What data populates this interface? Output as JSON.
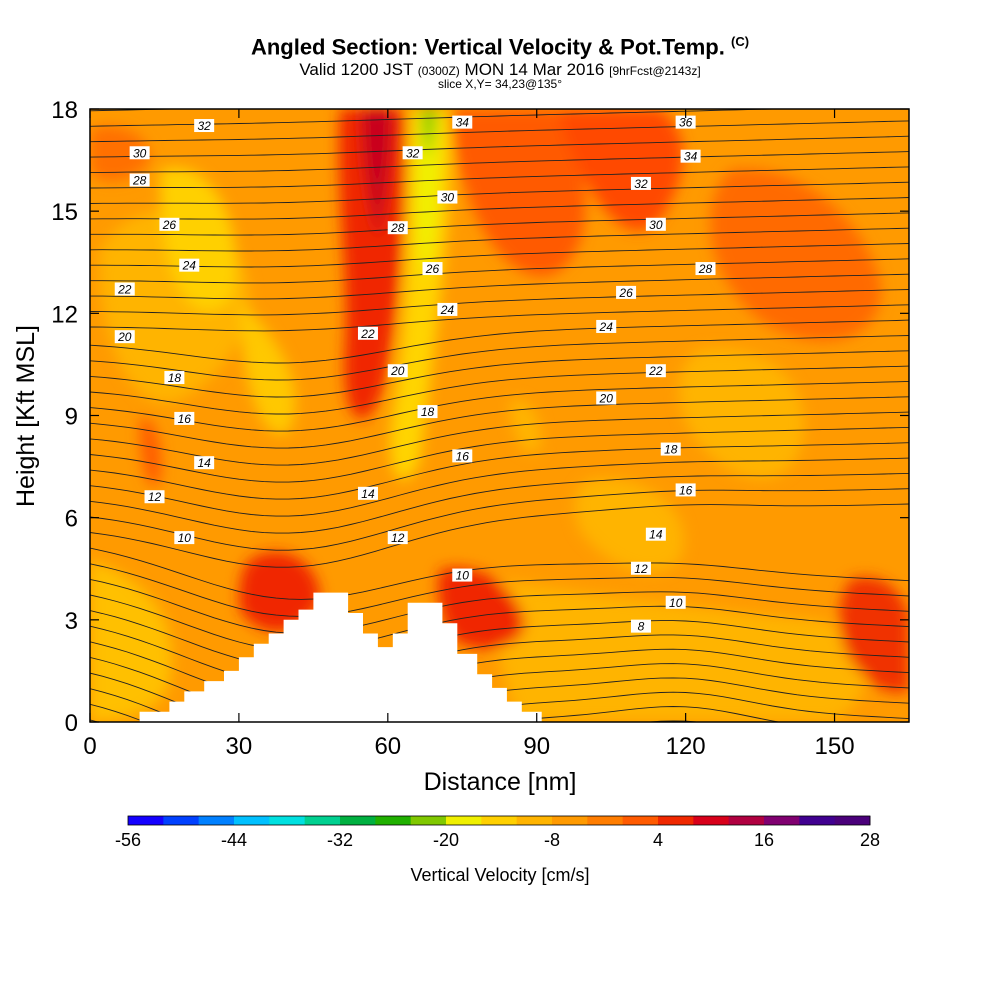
{
  "header": {
    "title": "Angled Section: Vertical Velocity & Pot.Temp.",
    "title_unit": "(C)",
    "valid_prefix": "Valid 1200 JST",
    "valid_utc": "(0300Z)",
    "valid_date": "MON 14 Mar 2016",
    "forecast": "[9hrFcst@2143z]",
    "slice": "slice X,Y= 34,23@135°"
  },
  "chart_data": {
    "type": "heatmap",
    "xlabel": "Distance [nm]",
    "ylabel": "Height [Kft MSL]",
    "xlim": [
      0,
      165
    ],
    "ylim": [
      0,
      18
    ],
    "xticks": [
      0,
      30,
      60,
      90,
      120,
      150
    ],
    "yticks": [
      0,
      3,
      6,
      9,
      12,
      15,
      18
    ],
    "colorbar": {
      "label": "Vertical Velocity [cm/s]",
      "min": -56,
      "max": 28,
      "step": 4,
      "tick_labels": [
        "-56",
        "-44",
        "-32",
        "-20",
        "-8",
        "4",
        "16",
        "28"
      ],
      "colors": [
        "#1400ff",
        "#0040ff",
        "#0080ff",
        "#00c0ff",
        "#00e0e0",
        "#00d090",
        "#00b040",
        "#20b000",
        "#80c800",
        "#f0f000",
        "#ffd000",
        "#ffb400",
        "#ff9a00",
        "#ff7d00",
        "#ff5a00",
        "#f02800",
        "#d8001a",
        "#b00040",
        "#800070",
        "#400090",
        "#4a007a"
      ]
    },
    "terrain": [
      [
        0,
        0
      ],
      [
        10,
        0
      ],
      [
        10,
        0.3
      ],
      [
        16,
        0.3
      ],
      [
        16,
        0.6
      ],
      [
        19,
        0.6
      ],
      [
        19,
        0.9
      ],
      [
        23,
        0.9
      ],
      [
        23,
        1.2
      ],
      [
        27,
        1.2
      ],
      [
        27,
        1.5
      ],
      [
        30,
        1.5
      ],
      [
        30,
        1.9
      ],
      [
        33,
        1.9
      ],
      [
        33,
        2.3
      ],
      [
        36,
        2.3
      ],
      [
        36,
        2.6
      ],
      [
        39,
        2.6
      ],
      [
        39,
        3.0
      ],
      [
        42,
        3.0
      ],
      [
        42,
        3.3
      ],
      [
        45,
        3.3
      ],
      [
        45,
        3.8
      ],
      [
        52,
        3.8
      ],
      [
        52,
        3.2
      ],
      [
        55,
        3.2
      ],
      [
        55,
        2.6
      ],
      [
        58,
        2.6
      ],
      [
        58,
        2.2
      ],
      [
        61,
        2.2
      ],
      [
        61,
        2.6
      ],
      [
        64,
        2.6
      ],
      [
        64,
        3.5
      ],
      [
        71,
        3.5
      ],
      [
        71,
        2.9
      ],
      [
        74,
        2.9
      ],
      [
        74,
        2.0
      ],
      [
        78,
        2.0
      ],
      [
        78,
        1.4
      ],
      [
        81,
        1.4
      ],
      [
        81,
        1.0
      ],
      [
        84,
        1.0
      ],
      [
        84,
        0.6
      ],
      [
        87,
        0.6
      ],
      [
        87,
        0.3
      ],
      [
        91,
        0.3
      ],
      [
        91,
        0
      ],
      [
        165,
        0
      ]
    ],
    "contour_labels": [
      {
        "text": "36",
        "x": 120,
        "y": 17.6
      },
      {
        "text": "34",
        "x": 75,
        "y": 17.6
      },
      {
        "text": "34",
        "x": 121,
        "y": 16.6
      },
      {
        "text": "32",
        "x": 23,
        "y": 17.5
      },
      {
        "text": "32",
        "x": 65,
        "y": 16.7
      },
      {
        "text": "32",
        "x": 111,
        "y": 15.8
      },
      {
        "text": "30",
        "x": 10,
        "y": 16.7
      },
      {
        "text": "30",
        "x": 72,
        "y": 15.4
      },
      {
        "text": "30",
        "x": 114,
        "y": 14.6
      },
      {
        "text": "28",
        "x": 10,
        "y": 15.9
      },
      {
        "text": "28",
        "x": 62,
        "y": 14.5
      },
      {
        "text": "28",
        "x": 124,
        "y": 13.3
      },
      {
        "text": "26",
        "x": 16,
        "y": 14.6
      },
      {
        "text": "26",
        "x": 69,
        "y": 13.3
      },
      {
        "text": "26",
        "x": 108,
        "y": 12.6
      },
      {
        "text": "24",
        "x": 20,
        "y": 13.4
      },
      {
        "text": "24",
        "x": 72,
        "y": 12.1
      },
      {
        "text": "24",
        "x": 104,
        "y": 11.6
      },
      {
        "text": "22",
        "x": 7,
        "y": 12.7
      },
      {
        "text": "22",
        "x": 56,
        "y": 11.4
      },
      {
        "text": "22",
        "x": 114,
        "y": 10.3
      },
      {
        "text": "20",
        "x": 7,
        "y": 11.3
      },
      {
        "text": "20",
        "x": 62,
        "y": 10.3
      },
      {
        "text": "20",
        "x": 104,
        "y": 9.5
      },
      {
        "text": "18",
        "x": 17,
        "y": 10.1
      },
      {
        "text": "18",
        "x": 68,
        "y": 9.1
      },
      {
        "text": "18",
        "x": 117,
        "y": 8.0
      },
      {
        "text": "16",
        "x": 19,
        "y": 8.9
      },
      {
        "text": "16",
        "x": 75,
        "y": 7.8
      },
      {
        "text": "16",
        "x": 120,
        "y": 6.8
      },
      {
        "text": "14",
        "x": 23,
        "y": 7.6
      },
      {
        "text": "14",
        "x": 56,
        "y": 6.7
      },
      {
        "text": "14",
        "x": 114,
        "y": 5.5
      },
      {
        "text": "12",
        "x": 13,
        "y": 6.6
      },
      {
        "text": "12",
        "x": 62,
        "y": 5.4
      },
      {
        "text": "12",
        "x": 111,
        "y": 4.5
      },
      {
        "text": "10",
        "x": 19,
        "y": 5.4
      },
      {
        "text": "10",
        "x": 75,
        "y": 4.3
      },
      {
        "text": "10",
        "x": 118,
        "y": 3.5
      },
      {
        "text": "8",
        "x": 111,
        "y": 2.8
      }
    ]
  }
}
